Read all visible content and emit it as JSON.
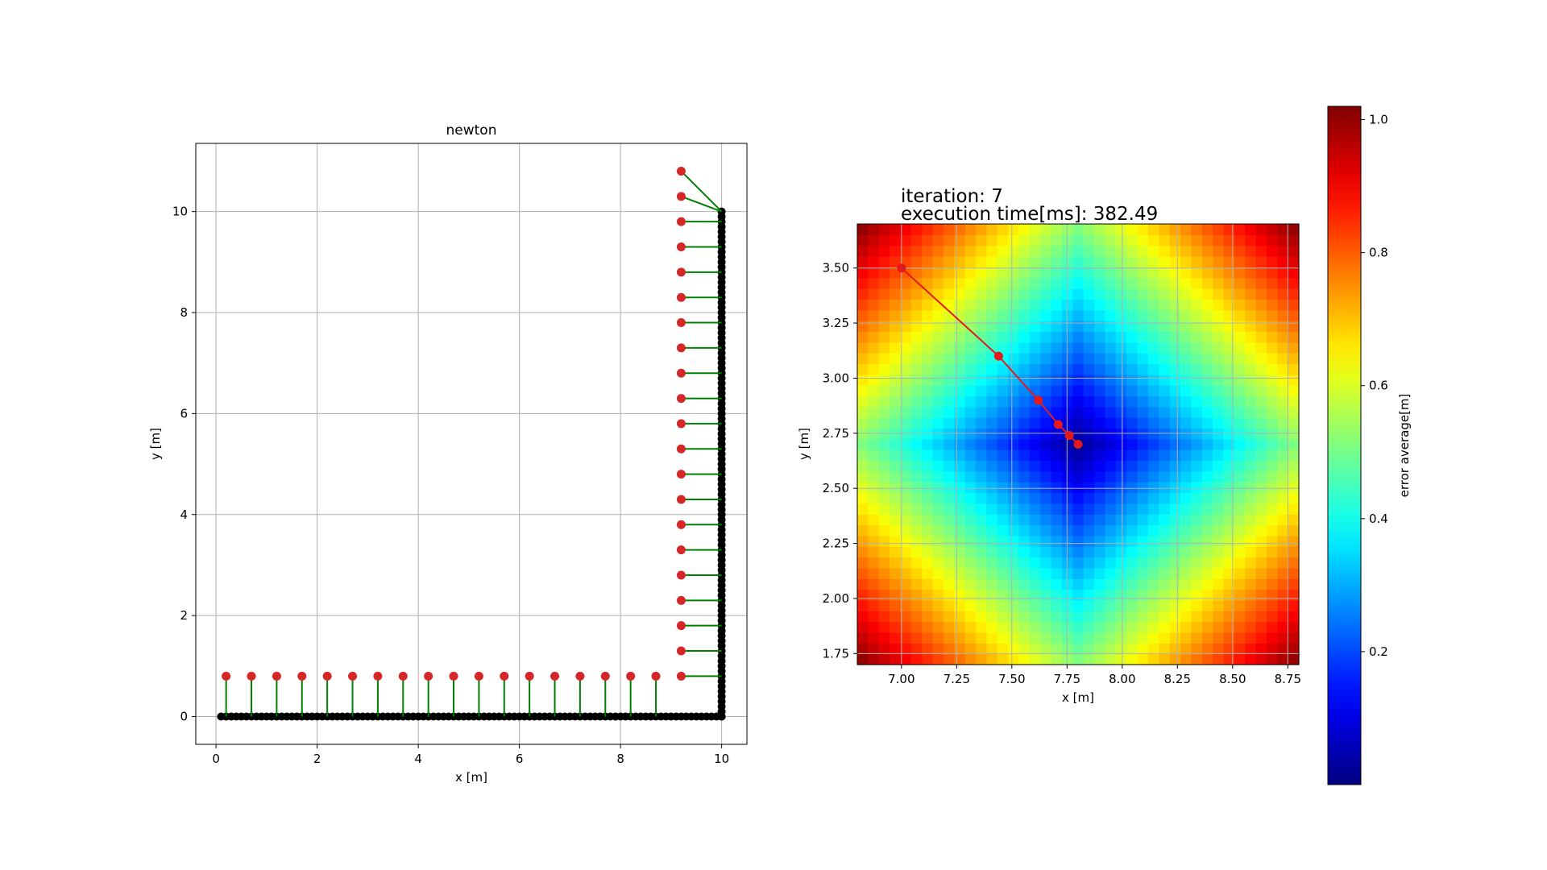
{
  "chart_data": [
    {
      "type": "scatter",
      "title": "newton",
      "xlabel": "x [m]",
      "ylabel": "y [m]",
      "xlim": [
        -0.4,
        10.5
      ],
      "ylim": [
        -0.55,
        11.35
      ],
      "grid": true,
      "xticks": [
        0,
        2,
        4,
        6,
        8,
        10
      ],
      "yticks": [
        0,
        2,
        4,
        6,
        8,
        10
      ],
      "series": [
        {
          "kind": "black-points",
          "color": "#000000",
          "note_wall_points": "dense L-shaped point cloud along y=0 (x 0.1..10) and x=10 (y 0..10)"
        },
        {
          "kind": "red-points",
          "color": "#d62728",
          "bottom_row": {
            "y": 0.8,
            "x": [
              0.2,
              0.7,
              1.2,
              1.7,
              2.2,
              2.7,
              3.2,
              3.7,
              4.2,
              4.7,
              5.2,
              5.7,
              6.2,
              6.7,
              7.2,
              7.7,
              8.2,
              8.7
            ]
          },
          "right_column": {
            "x": 9.2,
            "y": [
              0.8,
              1.3,
              1.8,
              2.3,
              2.8,
              3.3,
              3.8,
              4.3,
              4.8,
              5.3,
              5.8,
              6.3,
              6.8,
              7.3,
              7.8,
              8.3,
              8.8,
              9.3,
              9.8,
              10.3,
              10.8
            ]
          }
        },
        {
          "kind": "correspondence-lines",
          "color": "#008000"
        }
      ]
    },
    {
      "type": "heatmap",
      "annotations": [
        "iteration: 7",
        "execution time[ms]: 382.49"
      ],
      "xlabel": "x [m]",
      "ylabel": "y [m]",
      "xlim": [
        6.8,
        8.8
      ],
      "ylim": [
        1.7,
        3.7
      ],
      "grid": true,
      "xticks": [
        "7.00",
        "7.25",
        "7.50",
        "7.75",
        "8.00",
        "8.25",
        "8.50",
        "8.75"
      ],
      "yticks": [
        "1.75",
        "2.00",
        "2.25",
        "2.50",
        "2.75",
        "3.00",
        "3.25",
        "3.50"
      ],
      "minimum": {
        "x": 7.8,
        "y": 2.7
      },
      "colormap": "jet",
      "trajectory": {
        "color": "#e31a1c",
        "x": [
          7.0,
          7.44,
          7.62,
          7.71,
          7.76,
          7.8
        ],
        "y": [
          3.5,
          3.1,
          2.9,
          2.79,
          2.74,
          2.7
        ]
      },
      "colorbar": {
        "label": "error average[m]",
        "range": [
          0.0,
          1.02
        ],
        "ticks": [
          "0.2",
          "0.4",
          "0.6",
          "0.8",
          "1.0"
        ]
      }
    }
  ]
}
